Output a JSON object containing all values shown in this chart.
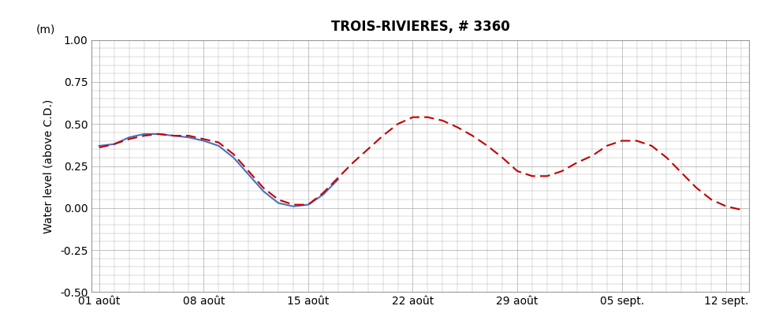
{
  "title": "TROIS-RIVIERES, # 3360",
  "ylabel_top": "(m)",
  "ylabel_main": "Water level (above C.D.)",
  "xtick_labels": [
    "01 août",
    "08 août",
    "15 août",
    "22 août",
    "29 août",
    "05 sept.",
    "12 sept."
  ],
  "xtick_days": [
    0,
    7,
    14,
    21,
    28,
    35,
    42
  ],
  "ylim": [
    -0.5,
    1.0
  ],
  "yticks": [
    -0.5,
    -0.25,
    0.0,
    0.25,
    0.5,
    0.75,
    1.0
  ],
  "ytick_labels": [
    "-0.50",
    "-0.25",
    "0.00",
    "0.25",
    "0.50",
    "0.75",
    "1.00"
  ],
  "blue_x": [
    0,
    1,
    2,
    3,
    4,
    5,
    6,
    7,
    8,
    9,
    10,
    11,
    12,
    13,
    14,
    15,
    16
  ],
  "blue_y": [
    0.37,
    0.38,
    0.42,
    0.44,
    0.44,
    0.43,
    0.42,
    0.4,
    0.37,
    0.3,
    0.2,
    0.1,
    0.03,
    0.01,
    0.02,
    0.08,
    0.17
  ],
  "red_x": [
    0,
    1,
    2,
    3,
    4,
    5,
    6,
    7,
    8,
    9,
    10,
    11,
    12,
    13,
    14,
    15,
    16,
    17,
    18,
    19,
    20,
    21,
    22,
    23,
    24,
    25,
    26,
    27,
    28,
    29,
    30,
    31,
    32,
    33,
    34,
    35,
    36,
    37,
    38,
    39,
    40,
    41,
    42,
    43
  ],
  "red_y": [
    0.36,
    0.38,
    0.41,
    0.43,
    0.44,
    0.43,
    0.43,
    0.41,
    0.39,
    0.32,
    0.22,
    0.12,
    0.05,
    0.02,
    0.02,
    0.09,
    0.18,
    0.27,
    0.35,
    0.43,
    0.5,
    0.54,
    0.54,
    0.52,
    0.48,
    0.43,
    0.37,
    0.3,
    0.22,
    0.19,
    0.19,
    0.22,
    0.27,
    0.31,
    0.37,
    0.4,
    0.4,
    0.37,
    0.3,
    0.21,
    0.12,
    0.05,
    0.01,
    -0.01
  ],
  "blue_color": "#4472C4",
  "red_color": "#C00000",
  "grid_color": "#AAAAAA",
  "background_color": "#FFFFFF",
  "title_fontsize": 12,
  "axis_fontsize": 10,
  "tick_fontsize": 10
}
